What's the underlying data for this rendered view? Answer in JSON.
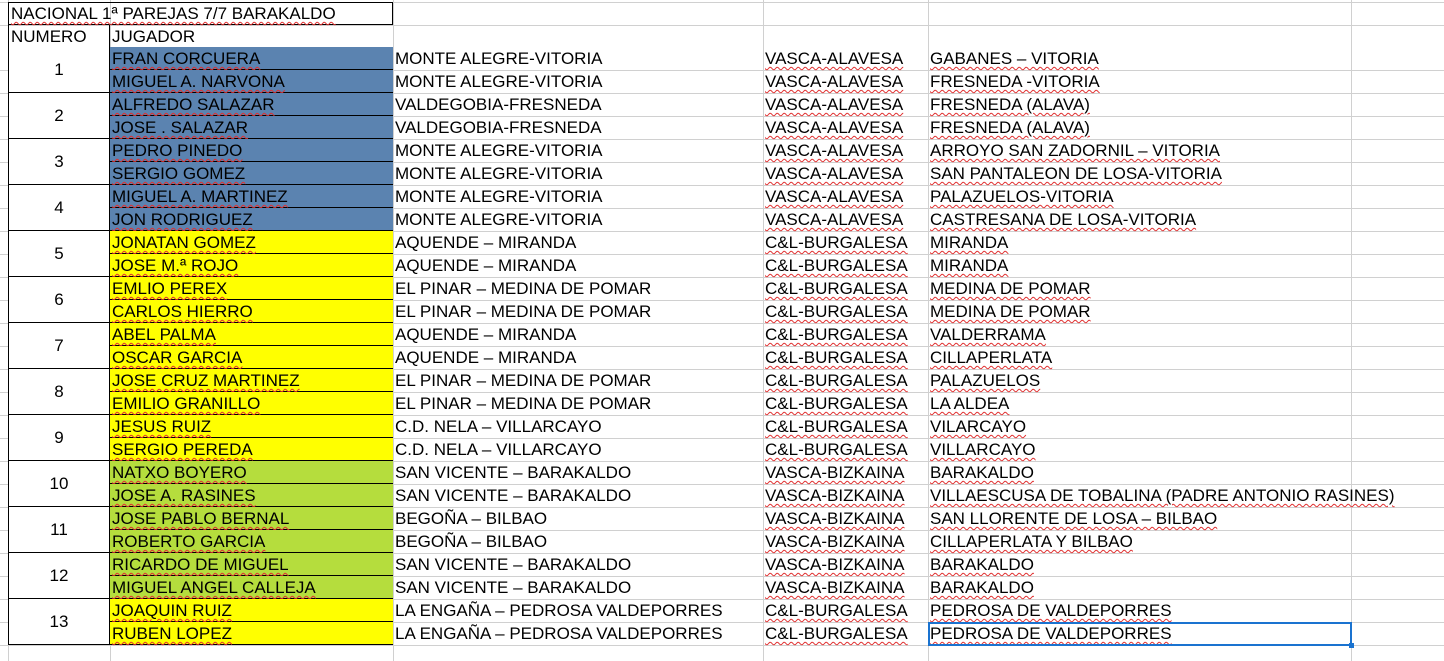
{
  "sheet": {
    "title": "NACIONAL 1ª PAREJAS 7/7 BARAKALDO",
    "headers": {
      "numero": "NUMERO",
      "jugador": "JUGADOR"
    },
    "colors": {
      "vasca_alavesa": "#5b83b0",
      "burgalesa": "#ffff00",
      "bizkaina": "#b5dd3d",
      "selection": "#1a73d0"
    },
    "pairs": [
      {
        "number": "1",
        "players": [
          {
            "name": "FRAN CORCUERA",
            "club": "MONTE ALEGRE-VITORIA",
            "federation": "VASCA-ALAVESA",
            "town": "GABANES – VITORIA",
            "color": "#5b83b0"
          },
          {
            "name": "MIGUEL A. NARVONA",
            "club": "MONTE ALEGRE-VITORIA",
            "federation": "VASCA-ALAVESA",
            "town": "FRESNEDA -VITORIA",
            "color": "#5b83b0"
          }
        ]
      },
      {
        "number": "2",
        "players": [
          {
            "name": "ALFREDO SALAZAR",
            "club": "VALDEGOBIA-FRESNEDA",
            "federation": "VASCA-ALAVESA",
            "town": "FRESNEDA (ALAVA)",
            "color": "#5b83b0"
          },
          {
            "name": "JOSE . SALAZAR",
            "club": "VALDEGOBIA-FRESNEDA",
            "federation": "VASCA-ALAVESA",
            "town": "FRESNEDA (ALAVA)",
            "color": "#5b83b0"
          }
        ]
      },
      {
        "number": "3",
        "players": [
          {
            "name": "PEDRO PINEDO",
            "club": "MONTE ALEGRE-VITORIA",
            "federation": "VASCA-ALAVESA",
            "town": "ARROYO  SAN ZADORNIL – VITORIA",
            "color": "#5b83b0"
          },
          {
            "name": "SERGIO GOMEZ",
            "club": "MONTE ALEGRE-VITORIA",
            "federation": "VASCA-ALAVESA",
            "town": "SAN PANTALEON DE LOSA-VITORIA",
            "color": "#5b83b0"
          }
        ]
      },
      {
        "number": "4",
        "players": [
          {
            "name": "MIGUEL A. MARTINEZ",
            "club": "MONTE ALEGRE-VITORIA",
            "federation": "VASCA-ALAVESA",
            "town": "PALAZUELOS-VITORIA",
            "color": "#5b83b0"
          },
          {
            "name": "JON RODRIGUEZ",
            "club": "MONTE ALEGRE-VITORIA",
            "federation": "VASCA-ALAVESA",
            "town": "CASTRESANA DE LOSA-VITORIA",
            "color": "#5b83b0"
          }
        ]
      },
      {
        "number": "5",
        "players": [
          {
            "name": "JONATAN GOMEZ",
            "club": "AQUENDE – MIRANDA",
            "federation": "C&L-BURGALESA",
            "town": "MIRANDA",
            "color": "#ffff00"
          },
          {
            "name": "JOSE M.ª ROJO",
            "club": "AQUENDE – MIRANDA",
            "federation": "C&L-BURGALESA",
            "town": "MIRANDA",
            "color": "#ffff00"
          }
        ]
      },
      {
        "number": "6",
        "players": [
          {
            "name": "EMLIO PEREX",
            "club": "EL PINAR – MEDINA DE POMAR",
            "federation": "C&L-BURGALESA",
            "town": "MEDINA DE POMAR",
            "color": "#ffff00"
          },
          {
            "name": "CARLOS HIERRO",
            "club": "EL PINAR – MEDINA DE POMAR",
            "federation": "C&L-BURGALESA",
            "town": "MEDINA DE POMAR",
            "color": "#ffff00"
          }
        ]
      },
      {
        "number": "7",
        "players": [
          {
            "name": "ABEL PALMA",
            "club": "AQUENDE – MIRANDA",
            "federation": "C&L-BURGALESA",
            "town": "VALDERRAMA",
            "color": "#ffff00"
          },
          {
            "name": "OSCAR GARCIA",
            "club": "AQUENDE – MIRANDA",
            "federation": "C&L-BURGALESA",
            "town": "CILLAPERLATA",
            "color": "#ffff00"
          }
        ]
      },
      {
        "number": "8",
        "players": [
          {
            "name": "JOSE CRUZ MARTINEZ",
            "club": "EL PINAR – MEDINA DE POMAR",
            "federation": "C&L-BURGALESA",
            "town": "PALAZUELOS",
            "color": "#ffff00"
          },
          {
            "name": "EMILIO GRANILLO",
            "club": "EL PINAR – MEDINA DE POMAR",
            "federation": "C&L-BURGALESA",
            "town": "LA ALDEA",
            "color": "#ffff00"
          }
        ]
      },
      {
        "number": "9",
        "players": [
          {
            "name": "JESUS RUIZ",
            "club": "C.D. NELA – VILLARCAYO",
            "federation": "C&L-BURGALESA",
            "town": "VILARCAYO",
            "color": "#ffff00"
          },
          {
            "name": "SERGIO PEREDA",
            "club": "C.D. NELA – VILLARCAYO",
            "federation": "C&L-BURGALESA",
            "town": "VILLARCAYO",
            "color": "#ffff00"
          }
        ]
      },
      {
        "number": "10",
        "players": [
          {
            "name": "NATXO BOYERO",
            "club": "SAN VICENTE – BARAKALDO",
            "federation": "VASCA-BIZKAINA",
            "town": "BARAKALDO",
            "color": "#b5dd3d"
          },
          {
            "name": "JOSE A. RASINES",
            "club": "SAN VICENTE – BARAKALDO",
            "federation": "VASCA-BIZKAINA",
            "town": "VILLAESCUSA DE TOBALINA (PADRE ANTONIO RASINES)",
            "color": "#b5dd3d"
          }
        ]
      },
      {
        "number": "11",
        "players": [
          {
            "name": "JOSE PABLO BERNAL",
            "club": "BEGOÑA – BILBAO",
            "federation": "VASCA-BIZKAINA",
            "town": "SAN LLORENTE DE LOSA – BILBAO",
            "color": "#b5dd3d"
          },
          {
            "name": "ROBERTO GARCIA",
            "club": "BEGOÑA – BILBAO",
            "federation": "VASCA-BIZKAINA",
            "town": "CILLAPERLATA Y BILBAO",
            "color": "#b5dd3d"
          }
        ]
      },
      {
        "number": "12",
        "players": [
          {
            "name": "RICARDO DE MIGUEL",
            "club": "SAN VICENTE – BARAKALDO",
            "federation": "VASCA-BIZKAINA",
            "town": "BARAKALDO",
            "color": "#b5dd3d"
          },
          {
            "name": "MIGUEL ANGEL CALLEJA",
            "club": "SAN VICENTE – BARAKALDO",
            "federation": "VASCA-BIZKAINA",
            "town": "BARAKALDO",
            "color": "#b5dd3d"
          }
        ]
      },
      {
        "number": "13",
        "players": [
          {
            "name": "JOAQUIN RUIZ",
            "club": "LA ENGAÑA – PEDROSA VALDEPORRES",
            "federation": "C&L-BURGALESA",
            "town": "PEDROSA DE VALDEPORRES",
            "color": "#ffff00"
          },
          {
            "name": "RUBEN LOPEZ",
            "club": "LA ENGAÑA – PEDROSA VALDEPORRES",
            "federation": "C&L-BURGALESA",
            "town": "PEDROSA DE VALDEPORRES",
            "color": "#ffff00"
          }
        ]
      }
    ]
  }
}
